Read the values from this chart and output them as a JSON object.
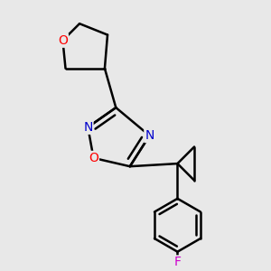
{
  "background_color": "#e8e8e8",
  "bond_color": "#000000",
  "figsize": [
    3.0,
    3.0
  ],
  "dpi": 100,
  "atom_colors": {
    "O": "#ff0000",
    "N": "#0000cc",
    "F": "#cc00cc",
    "C": "#000000"
  }
}
